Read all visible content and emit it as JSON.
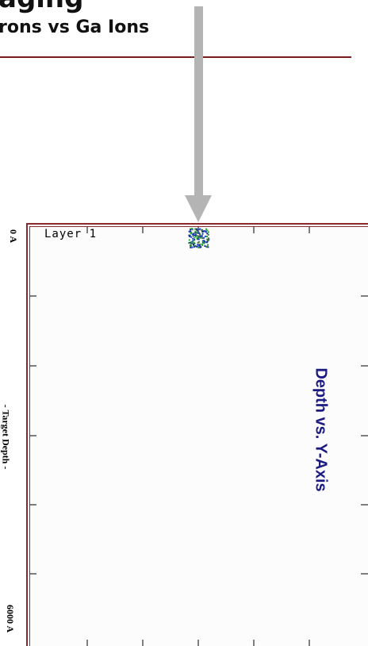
{
  "slide": {
    "title": "aging",
    "subtitle": "rons vs Ga Ions"
  },
  "plot": {
    "layer_label": "Layer 1",
    "caption": "Depth vs. Y-Axis",
    "depth_top_label": "0 A",
    "depth_axis_label": "- Target Depth -",
    "depth_bottom_label": "6000 A"
  },
  "colors": {
    "arrow": "#b4b4b4",
    "frame": "#8a2a2a",
    "caption": "#1a1a80",
    "trajectory_blue": "#1f3fd0",
    "trajectory_green": "#22a82a"
  }
}
